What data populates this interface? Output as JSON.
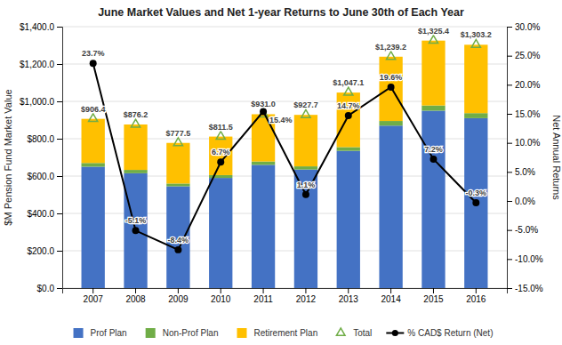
{
  "chart_data": {
    "type": "bar",
    "title": "June Market Values and Net 1-year Returns to June 30th of Each Year",
    "categories": [
      "2007",
      "2008",
      "2009",
      "2010",
      "2011",
      "2012",
      "2013",
      "2014",
      "2015",
      "2016"
    ],
    "ylabel": "$M Pension Fund Market Value",
    "y2label": "Net Annual Returns",
    "stacked": true,
    "grid": true,
    "legend": "bottom",
    "ylim": [
      0,
      1400
    ],
    "yticks": [
      {
        "value": 0,
        "label": "$0.0"
      },
      {
        "value": 200,
        "label": "$200.0"
      },
      {
        "value": 400,
        "label": "$400.0"
      },
      {
        "value": 600,
        "label": "$600.0"
      },
      {
        "value": 800,
        "label": "$800.0"
      },
      {
        "value": 1000,
        "label": "$1,000.0"
      },
      {
        "value": 1200,
        "label": "$1,200.0"
      },
      {
        "value": 1400,
        "label": "$1,400.0"
      }
    ],
    "y2lim": [
      -15,
      30
    ],
    "y2ticks": [
      {
        "value": -15,
        "label": "-15.0%"
      },
      {
        "value": -10,
        "label": "-10.0%"
      },
      {
        "value": -5,
        "label": "-5.0%"
      },
      {
        "value": 0,
        "label": "0.0%"
      },
      {
        "value": 5,
        "label": "5.0%"
      },
      {
        "value": 10,
        "label": "10.0%"
      },
      {
        "value": 15,
        "label": "15.0%"
      },
      {
        "value": 20,
        "label": "20.0%"
      },
      {
        "value": 25,
        "label": "25.0%"
      },
      {
        "value": 30,
        "label": "30.0%"
      }
    ],
    "series": [
      {
        "name": "Prof Plan",
        "type": "bar",
        "color": "#4472C4",
        "values": [
          650,
          615,
          545,
          590,
          660,
          635,
          735,
          870,
          950,
          910
        ]
      },
      {
        "name": "Non-Prof Plan",
        "type": "bar",
        "color": "#70AD47",
        "values": [
          20,
          18,
          15,
          15,
          18,
          17,
          20,
          25,
          28,
          27
        ]
      },
      {
        "name": "Retirement Plan",
        "type": "bar",
        "color": "#FFC000",
        "values": [
          236.4,
          243.2,
          217.5,
          206.5,
          253.0,
          275.7,
          292.1,
          344.2,
          347.4,
          366.2
        ]
      },
      {
        "name": "Total",
        "type": "scatter",
        "marker": "triangle",
        "color": "#70AD47",
        "values": [
          906.4,
          876.2,
          777.5,
          811.5,
          931.0,
          927.7,
          1047.1,
          1239.2,
          1325.4,
          1303.2
        ],
        "value_labels": [
          "$906.4",
          "$876.2",
          "$777.5",
          "$811.5",
          "$931.0",
          "$927.7",
          "$1,047.1",
          "$1,239.2",
          "$1,325.4",
          "$1,303.2"
        ],
        "data_labels": true
      },
      {
        "name": "% CAD$ Return (Net)",
        "type": "line",
        "axis": "y2",
        "color": "#000000",
        "marker": "circle",
        "line_style": "solid",
        "values": [
          23.7,
          -5.1,
          -8.4,
          6.7,
          15.4,
          1.1,
          14.7,
          19.6,
          7.2,
          -0.3
        ],
        "value_labels": [
          "23.7%",
          "-5.1%",
          "-8.4%",
          "6.7%",
          "15.4%",
          "1.1%",
          "14.7%",
          "19.6%",
          "7.2%",
          "-0.3%"
        ],
        "data_labels": true
      }
    ]
  }
}
